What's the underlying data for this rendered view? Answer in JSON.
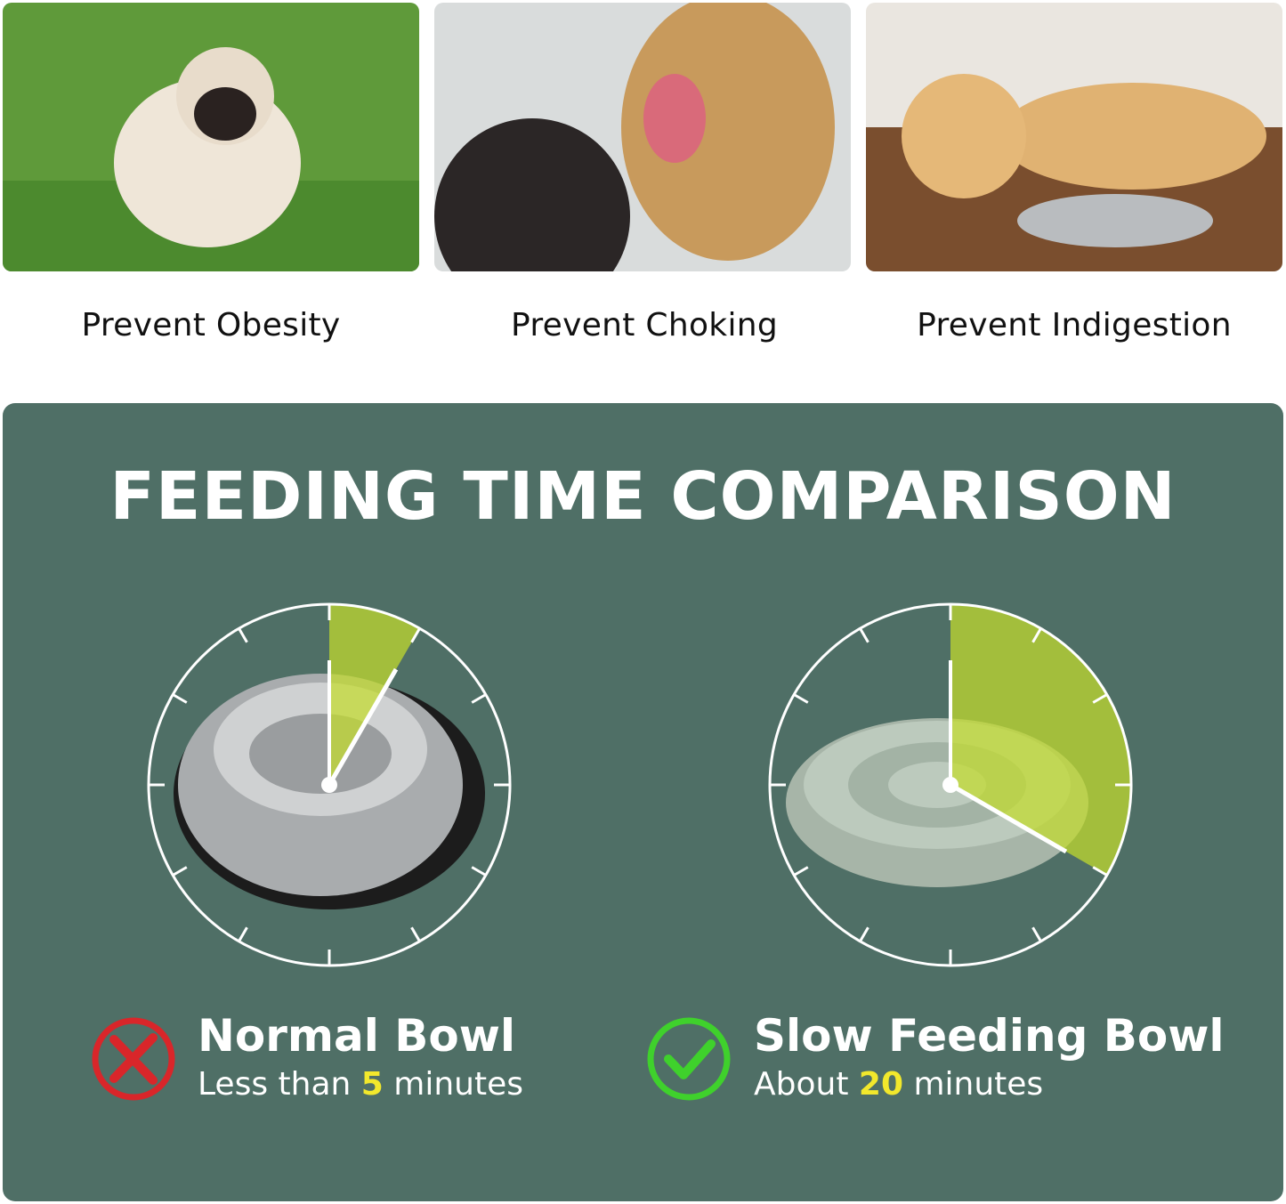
{
  "benefits": [
    {
      "caption": "Prevent Obesity",
      "image": "pug-on-grass"
    },
    {
      "caption": "Prevent Choking",
      "image": "golden-retriever-mouth-check"
    },
    {
      "caption": "Prevent Indigestion",
      "image": "labrador-lying-by-bowl"
    }
  ],
  "comparison": {
    "title": "FEEDING TIME COMPARISON",
    "colors": {
      "panel": "#4f6f66",
      "wedge": "#c4dc2c",
      "highlight": "#f2e82c",
      "bad": "#d9262a",
      "good": "#3fd12c"
    },
    "items": [
      {
        "name": "Normal Bowl",
        "prefix": "Less than ",
        "number": "5",
        "suffix": " minutes",
        "minutes": 5,
        "icon": "red-x-circle-icon",
        "bowl": "stainless-steel-bowl"
      },
      {
        "name": "Slow Feeding Bowl",
        "prefix": "About ",
        "number": "20",
        "suffix": " minutes",
        "minutes": 20,
        "icon": "green-check-circle-icon",
        "bowl": "maze-slow-feeder-bowl"
      }
    ]
  }
}
